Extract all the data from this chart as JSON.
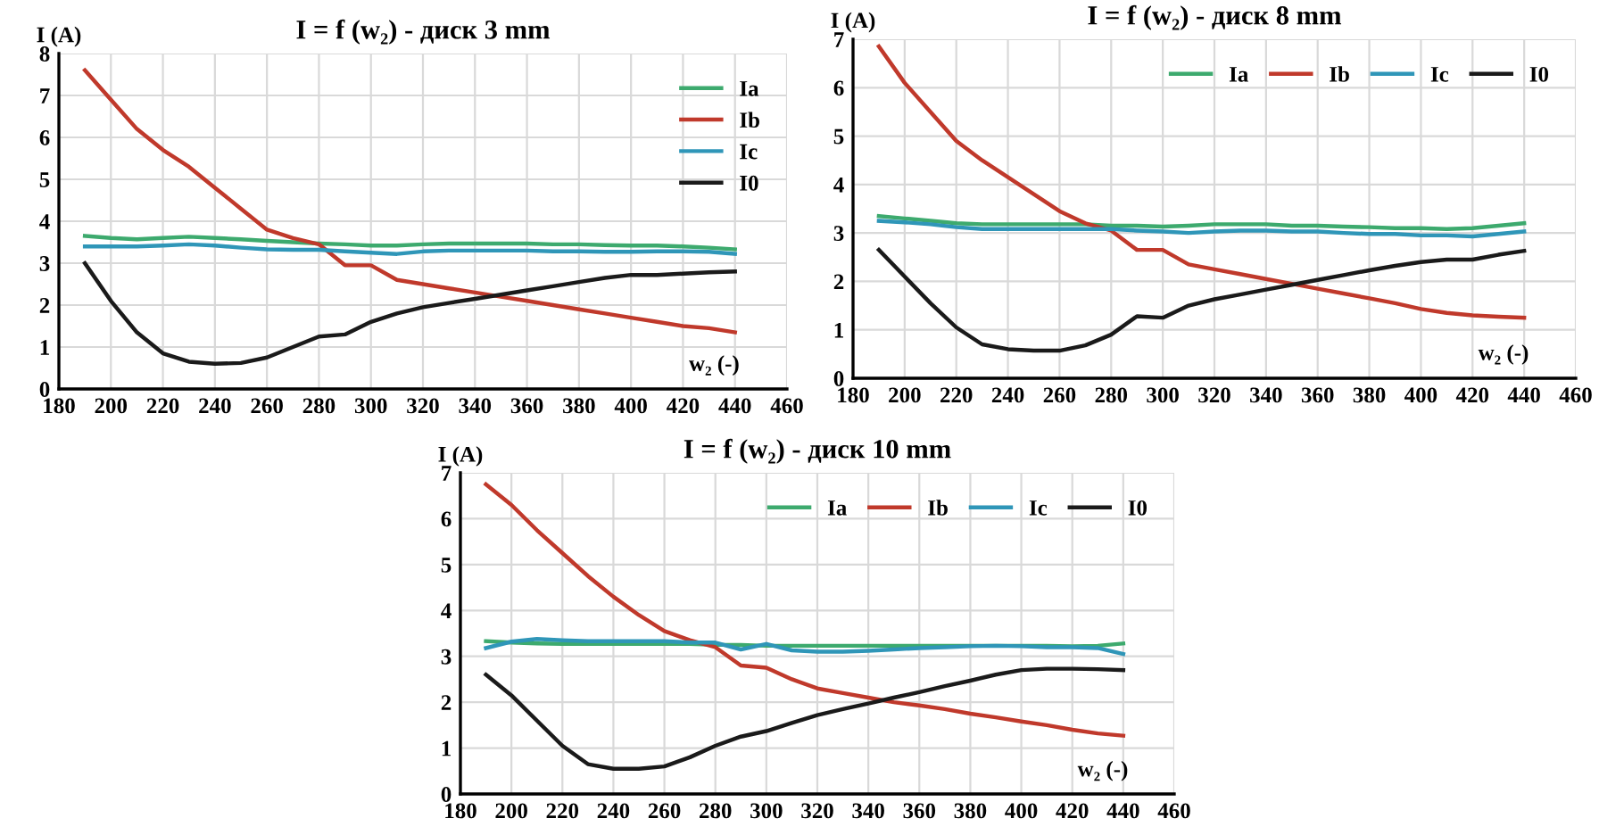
{
  "chart_data": [
    {
      "type": "line",
      "title": "I = f (w₂) - диск 3 mm",
      "xlabel": "w₂ (-)",
      "ylabel": "I (A)",
      "xlim": [
        180,
        460
      ],
      "xticks": [
        180,
        200,
        220,
        240,
        260,
        280,
        300,
        320,
        340,
        360,
        380,
        400,
        420,
        440,
        460
      ],
      "ylim": [
        0,
        8
      ],
      "yticks": [
        0,
        1,
        2,
        3,
        4,
        5,
        6,
        7,
        8
      ],
      "grid": true,
      "legend": "right",
      "marker": "none",
      "line_style": "solid",
      "x": [
        190,
        200,
        210,
        220,
        230,
        240,
        250,
        260,
        270,
        280,
        290,
        300,
        310,
        320,
        330,
        340,
        350,
        360,
        370,
        380,
        390,
        400,
        410,
        420,
        430,
        440
      ],
      "series": [
        {
          "name": "Ia",
          "color": "#3daa6e",
          "values": [
            3.65,
            3.6,
            3.57,
            3.6,
            3.63,
            3.6,
            3.57,
            3.53,
            3.5,
            3.47,
            3.45,
            3.42,
            3.42,
            3.45,
            3.47,
            3.47,
            3.47,
            3.47,
            3.45,
            3.45,
            3.43,
            3.42,
            3.42,
            3.4,
            3.37,
            3.33
          ]
        },
        {
          "name": "Ib",
          "color": "#c0392b",
          "values": [
            7.6,
            6.9,
            6.2,
            5.7,
            5.3,
            4.8,
            4.3,
            3.8,
            3.6,
            3.45,
            2.95,
            2.95,
            2.6,
            2.5,
            2.4,
            2.3,
            2.2,
            2.1,
            2.0,
            1.9,
            1.8,
            1.7,
            1.6,
            1.5,
            1.45,
            1.35
          ]
        },
        {
          "name": "Ic",
          "color": "#2f96b8",
          "values": [
            3.4,
            3.4,
            3.4,
            3.42,
            3.45,
            3.42,
            3.37,
            3.33,
            3.32,
            3.32,
            3.28,
            3.25,
            3.22,
            3.28,
            3.3,
            3.3,
            3.3,
            3.3,
            3.28,
            3.28,
            3.27,
            3.27,
            3.28,
            3.28,
            3.27,
            3.22
          ]
        },
        {
          "name": "I0",
          "color": "#1a1a1a",
          "values": [
            3.0,
            2.1,
            1.35,
            0.85,
            0.65,
            0.6,
            0.62,
            0.75,
            1.0,
            1.25,
            1.3,
            1.6,
            1.8,
            1.95,
            2.05,
            2.15,
            2.25,
            2.35,
            2.45,
            2.55,
            2.65,
            2.72,
            2.72,
            2.75,
            2.78,
            2.8
          ]
        }
      ]
    },
    {
      "type": "line",
      "title": "I = f (w₂) - диск 8 mm",
      "xlabel": "w₂ (-)",
      "ylabel": "I (A)",
      "xlim": [
        180,
        460
      ],
      "xticks": [
        180,
        200,
        220,
        240,
        260,
        280,
        300,
        320,
        340,
        360,
        380,
        400,
        420,
        440,
        460
      ],
      "ylim": [
        0,
        7
      ],
      "yticks": [
        0,
        1,
        2,
        3,
        4,
        5,
        6,
        7
      ],
      "grid": true,
      "legend": "top right",
      "marker": "none",
      "line_style": "solid",
      "x": [
        190,
        200,
        210,
        220,
        230,
        240,
        250,
        260,
        270,
        280,
        290,
        300,
        310,
        320,
        330,
        340,
        350,
        360,
        370,
        380,
        390,
        400,
        410,
        420,
        430,
        440
      ],
      "series": [
        {
          "name": "Ia",
          "color": "#3daa6e",
          "values": [
            3.35,
            3.3,
            3.25,
            3.2,
            3.18,
            3.18,
            3.18,
            3.18,
            3.18,
            3.15,
            3.15,
            3.13,
            3.15,
            3.18,
            3.18,
            3.18,
            3.15,
            3.15,
            3.13,
            3.12,
            3.1,
            3.1,
            3.08,
            3.1,
            3.15,
            3.2
          ]
        },
        {
          "name": "Ib",
          "color": "#c0392b",
          "values": [
            6.85,
            6.1,
            5.5,
            4.9,
            4.5,
            4.15,
            3.8,
            3.45,
            3.2,
            3.05,
            2.65,
            2.65,
            2.35,
            2.25,
            2.15,
            2.05,
            1.95,
            1.85,
            1.75,
            1.65,
            1.55,
            1.43,
            1.35,
            1.3,
            1.27,
            1.25
          ]
        },
        {
          "name": "Ic",
          "color": "#2f96b8",
          "values": [
            3.25,
            3.22,
            3.18,
            3.12,
            3.08,
            3.08,
            3.08,
            3.08,
            3.08,
            3.08,
            3.05,
            3.03,
            3.0,
            3.03,
            3.05,
            3.05,
            3.03,
            3.03,
            3.0,
            2.98,
            2.98,
            2.95,
            2.95,
            2.93,
            2.98,
            3.03
          ]
        },
        {
          "name": "I0",
          "color": "#1a1a1a",
          "values": [
            2.65,
            2.1,
            1.55,
            1.05,
            0.7,
            0.6,
            0.57,
            0.57,
            0.68,
            0.9,
            1.28,
            1.25,
            1.5,
            1.63,
            1.73,
            1.83,
            1.93,
            2.03,
            2.13,
            2.23,
            2.32,
            2.4,
            2.45,
            2.45,
            2.55,
            2.63
          ]
        }
      ]
    },
    {
      "type": "line",
      "title": "I = f (w₂) - диск 10 mm",
      "xlabel": "w₂ (-)",
      "ylabel": "I (A)",
      "xlim": [
        180,
        460
      ],
      "xticks": [
        180,
        200,
        220,
        240,
        260,
        280,
        300,
        320,
        340,
        360,
        380,
        400,
        420,
        440,
        460
      ],
      "ylim": [
        0,
        7
      ],
      "yticks": [
        0,
        1,
        2,
        3,
        4,
        5,
        6,
        7
      ],
      "grid": true,
      "legend": "top right",
      "marker": "none",
      "line_style": "solid",
      "x": [
        190,
        200,
        210,
        220,
        230,
        240,
        250,
        260,
        270,
        280,
        290,
        300,
        310,
        320,
        330,
        340,
        350,
        360,
        370,
        380,
        390,
        400,
        410,
        420,
        430,
        440
      ],
      "series": [
        {
          "name": "Ia",
          "color": "#3daa6e",
          "values": [
            3.33,
            3.3,
            3.28,
            3.27,
            3.27,
            3.27,
            3.27,
            3.27,
            3.27,
            3.25,
            3.25,
            3.23,
            3.23,
            3.23,
            3.23,
            3.23,
            3.23,
            3.23,
            3.23,
            3.23,
            3.23,
            3.23,
            3.23,
            3.22,
            3.23,
            3.28
          ]
        },
        {
          "name": "Ib",
          "color": "#c0392b",
          "values": [
            6.75,
            6.3,
            5.75,
            5.25,
            4.75,
            4.3,
            3.9,
            3.55,
            3.35,
            3.2,
            2.8,
            2.75,
            2.5,
            2.3,
            2.2,
            2.1,
            2.0,
            1.93,
            1.85,
            1.75,
            1.67,
            1.58,
            1.5,
            1.4,
            1.32,
            1.27
          ]
        },
        {
          "name": "Ic",
          "color": "#2f96b8",
          "values": [
            3.18,
            3.32,
            3.38,
            3.35,
            3.33,
            3.33,
            3.33,
            3.33,
            3.3,
            3.3,
            3.15,
            3.27,
            3.13,
            3.1,
            3.1,
            3.12,
            3.15,
            3.18,
            3.2,
            3.22,
            3.23,
            3.22,
            3.2,
            3.2,
            3.18,
            3.05
          ]
        },
        {
          "name": "I0",
          "color": "#1a1a1a",
          "values": [
            2.6,
            2.15,
            1.6,
            1.05,
            0.65,
            0.55,
            0.55,
            0.6,
            0.8,
            1.05,
            1.25,
            1.37,
            1.55,
            1.72,
            1.85,
            1.97,
            2.1,
            2.22,
            2.35,
            2.47,
            2.6,
            2.7,
            2.73,
            2.73,
            2.72,
            2.7
          ]
        }
      ]
    }
  ]
}
